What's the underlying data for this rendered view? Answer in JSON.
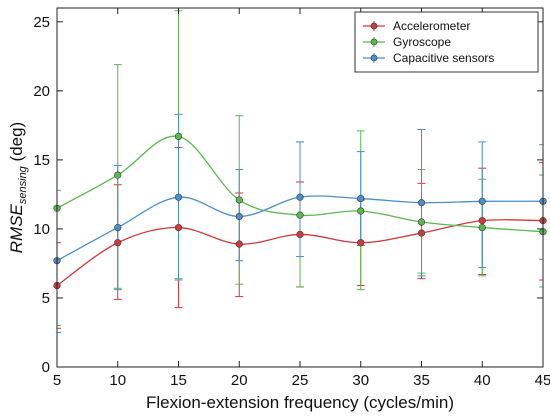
{
  "chart_data": {
    "type": "line",
    "title": "",
    "xlabel": "Flexion-extension frequency (cycles/min)",
    "ylabel": {
      "main": "RMSE",
      "sub": "sensing",
      "unit": " (deg)"
    },
    "xlim": [
      5,
      45
    ],
    "ylim": [
      0,
      26
    ],
    "xticks": [
      5,
      10,
      15,
      20,
      25,
      30,
      35,
      40,
      45
    ],
    "yticks": [
      0,
      5,
      10,
      15,
      20,
      25
    ],
    "grid": false,
    "legend_position": "top-right",
    "x": [
      5,
      10,
      15,
      20,
      25,
      30,
      35,
      40,
      45
    ],
    "series": [
      {
        "name": "Accelerometer",
        "color": "#d03a3a",
        "values": [
          5.9,
          9.0,
          10.1,
          8.9,
          9.6,
          9.0,
          9.7,
          10.6,
          10.6
        ],
        "err_low": [
          2.8,
          4.9,
          4.3,
          5.1,
          5.8,
          5.9,
          6.4,
          6.7,
          6.3
        ],
        "err_high": [
          9.0,
          13.2,
          15.9,
          12.6,
          13.4,
          12.1,
          13.3,
          14.4,
          14.8
        ]
      },
      {
        "name": "Gyroscope",
        "color": "#5ab84e",
        "values": [
          11.5,
          13.9,
          16.7,
          12.1,
          11.0,
          11.3,
          10.5,
          10.1,
          9.8
        ],
        "err_low": [
          3.0,
          5.7,
          6.4,
          6.0,
          5.8,
          5.6,
          6.8,
          6.6,
          5.8
        ],
        "err_high": [
          20.0,
          21.9,
          25.8,
          18.2,
          16.3,
          17.1,
          14.3,
          13.6,
          13.9
        ]
      },
      {
        "name": "Capacitive sensors",
        "color": "#4a8fc8",
        "values": [
          7.7,
          10.1,
          12.3,
          10.9,
          12.3,
          12.2,
          11.9,
          12.0,
          12.0
        ],
        "err_low": [
          2.5,
          5.6,
          6.3,
          7.7,
          8.0,
          8.8,
          6.6,
          7.2,
          7.8
        ],
        "err_high": [
          12.8,
          14.6,
          18.3,
          14.3,
          16.3,
          15.6,
          17.2,
          16.3,
          16.1
        ]
      }
    ]
  }
}
